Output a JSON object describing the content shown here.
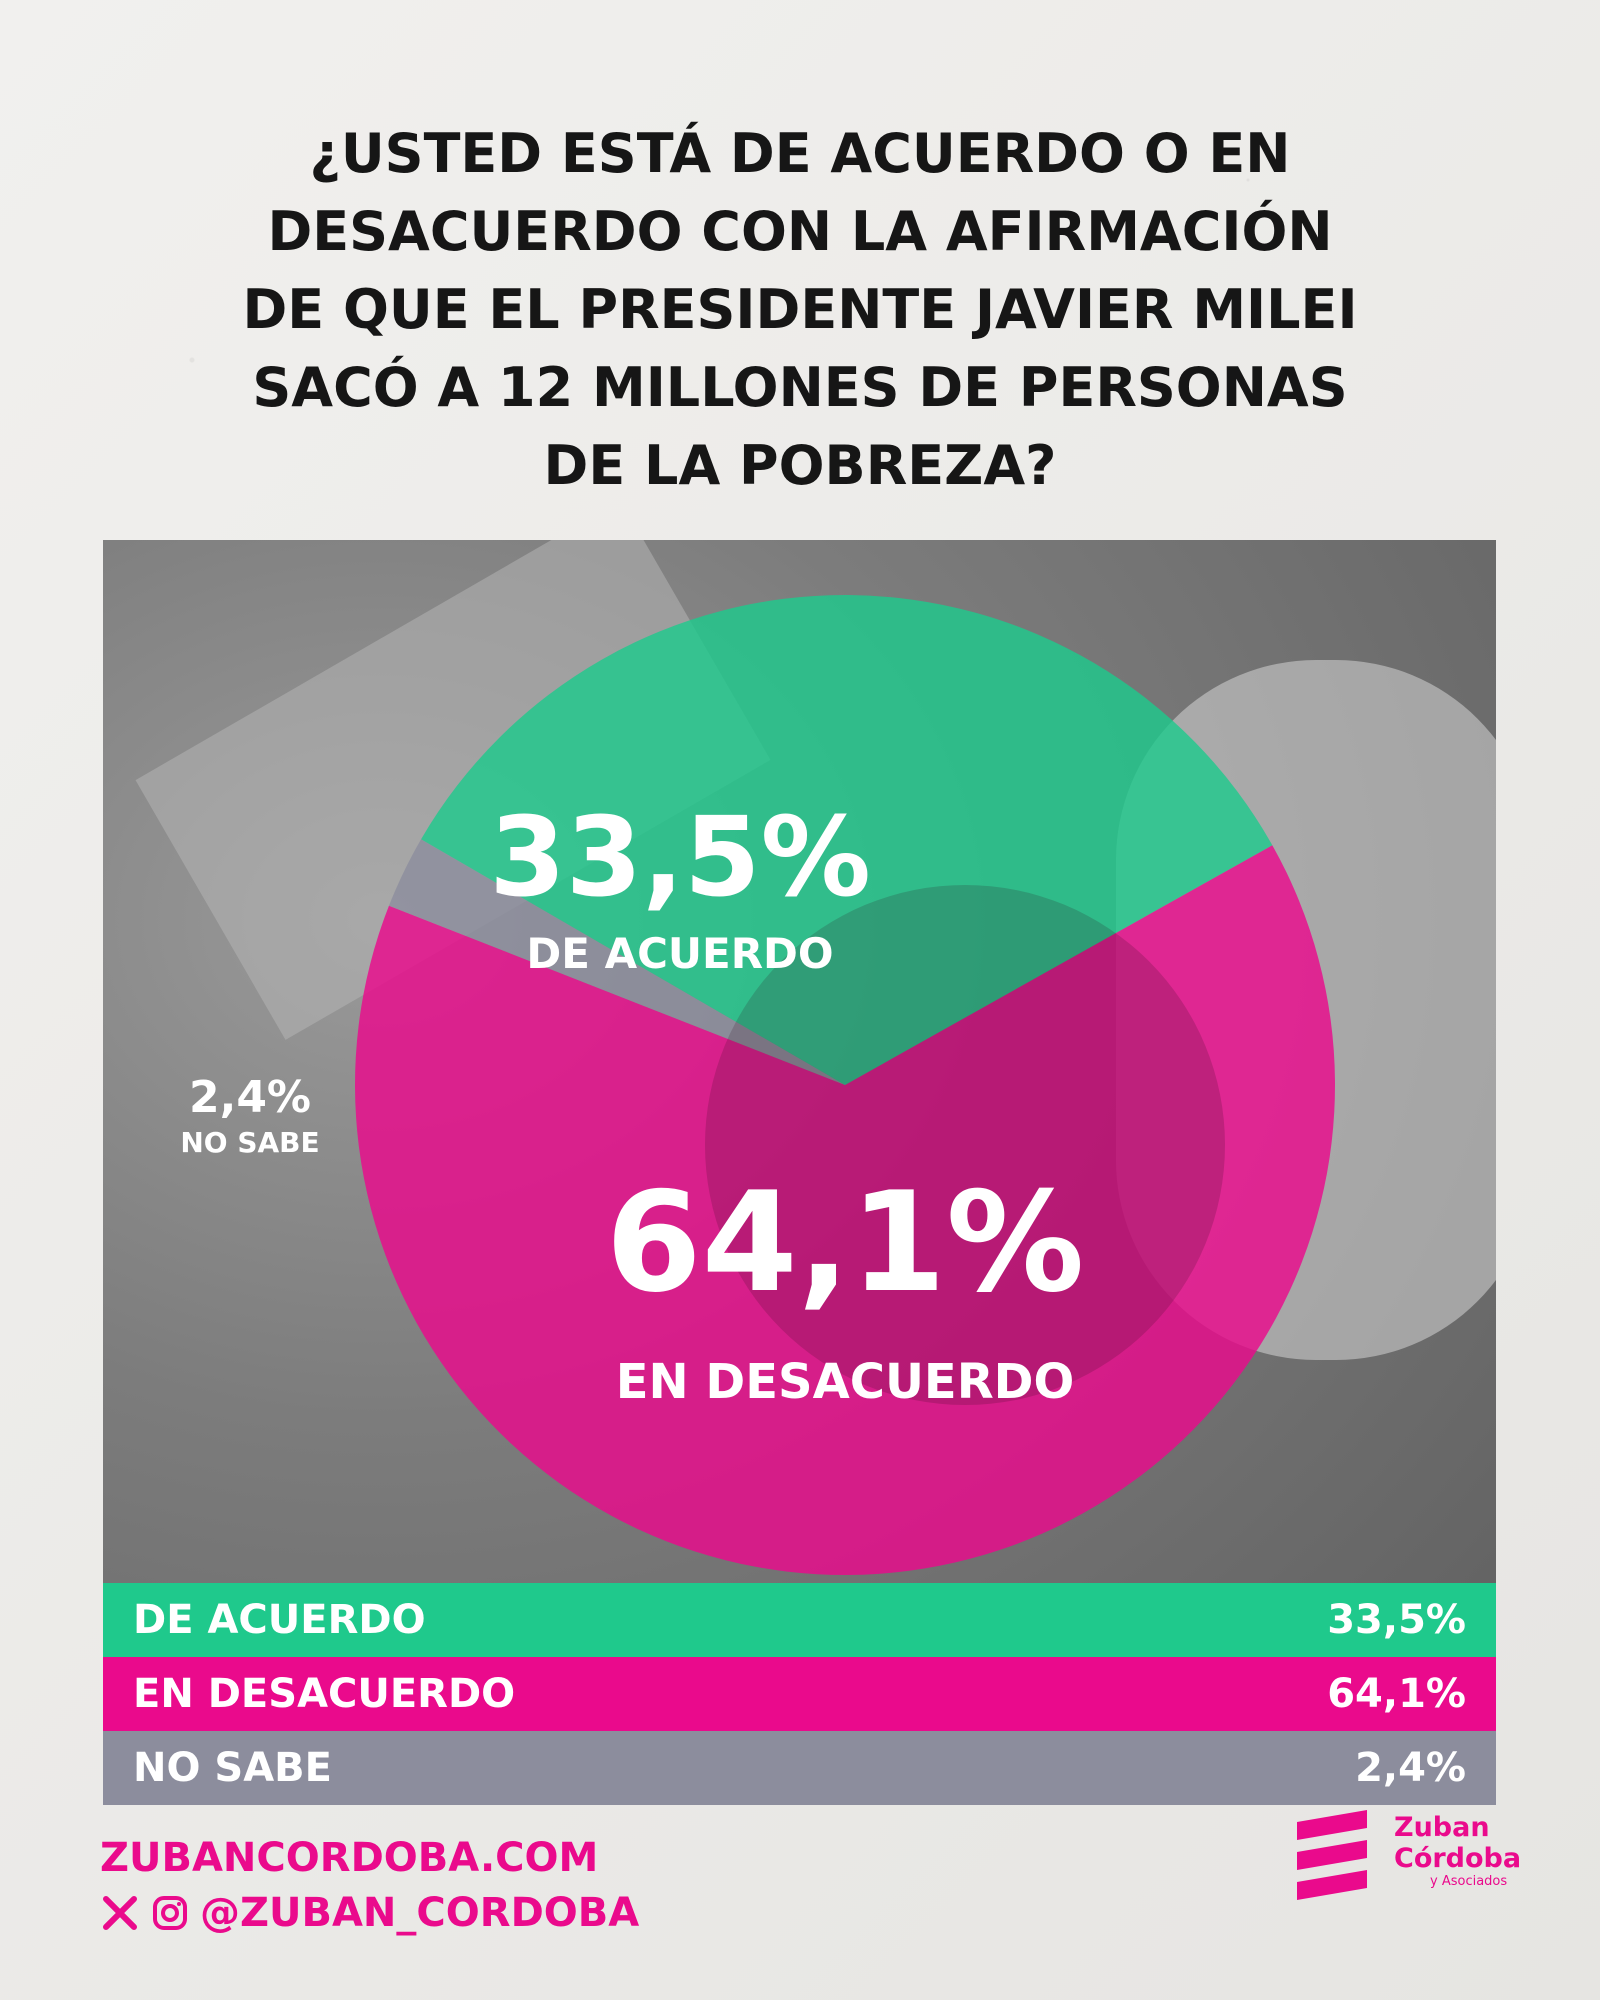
{
  "title_lines": [
    "¿USTED ESTÁ DE ACUERDO O EN",
    "DESACUERDO CON LA AFIRMACIÓN",
    "DE QUE EL PRESIDENTE JAVIER MILEI",
    "SACÓ A 12 MILLONES DE PERSONAS",
    "DE LA POBREZA?"
  ],
  "colors": {
    "agree": "#1fc98c",
    "disagree": "#ea0a8c",
    "unknown": "#8c8d9d",
    "accent": "#ea0a8c",
    "title": "#161616"
  },
  "chart_data": {
    "type": "pie",
    "title": "¿USTED ESTÁ DE ACUERDO O EN DESACUERDO CON LA AFIRMACIÓN DE QUE EL PRESIDENTE JAVIER MILEI SACÓ A 12 MILLONES DE PERSONAS DE LA POBREZA?",
    "slices": [
      {
        "key": "agree",
        "label": "DE ACUERDO",
        "value": 33.5,
        "display": "33,5%"
      },
      {
        "key": "disagree",
        "label": "EN DESACUERDO",
        "value": 64.1,
        "display": "64,1%"
      },
      {
        "key": "unknown",
        "label": "NO SABE",
        "value": 2.4,
        "display": "2,4%"
      }
    ],
    "slice_labels": {
      "agree": {
        "value": "33,5%",
        "text": "DE ACUERDO"
      },
      "disagree": {
        "value": "64,1%",
        "text": "EN DESACUERDO"
      },
      "unknown": {
        "value": "2,4%",
        "text": "NO SABE"
      }
    },
    "legend": [
      {
        "label": "DE ACUERDO",
        "value": "33,5%"
      },
      {
        "label": "EN DESACUERDO",
        "value": "64,1%"
      },
      {
        "label": "NO SABE",
        "value": "2,4%"
      }
    ]
  },
  "footer": {
    "website": "ZUBANCORDOBA.COM",
    "social_icons": [
      "x-icon",
      "instagram-icon"
    ],
    "handle": "@ZUBAN_CORDOBA"
  },
  "logo": {
    "line1": "Zuban",
    "line2": "Córdoba",
    "line3": "y Asociados"
  }
}
